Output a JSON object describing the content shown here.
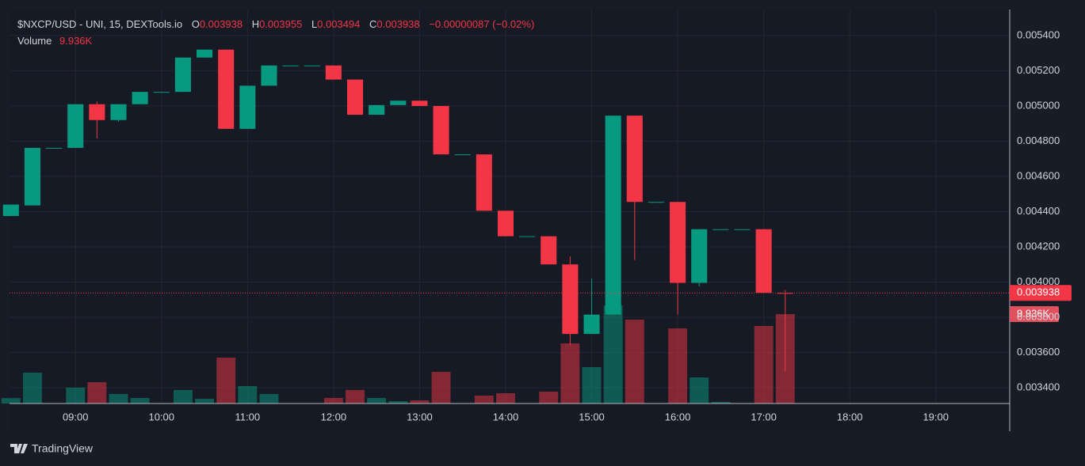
{
  "chart_data": {
    "type": "candlestick",
    "title": "$NXCP/USD - UNI, 15, DEXTools.io",
    "ohlc_letters": [
      "O",
      "H",
      "L",
      "C"
    ],
    "change": "−0.00000087 (−0.02%)",
    "up_color": "#089981",
    "down_color": "#f23645",
    "x": [
      "08:15",
      "08:30",
      "08:45",
      "09:00",
      "09:15",
      "09:30",
      "09:45",
      "10:00",
      "10:15",
      "10:30",
      "10:45",
      "11:00",
      "11:15",
      "11:30",
      "11:45",
      "12:00",
      "12:15",
      "12:30",
      "12:45",
      "13:00",
      "13:15",
      "13:30",
      "13:45",
      "14:00",
      "14:15",
      "14:30",
      "14:45",
      "15:00",
      "15:15",
      "15:30",
      "15:45",
      "16:00",
      "16:15",
      "16:30",
      "16:45",
      "17:00",
      "17:15"
    ],
    "open": [
      0.004375,
      0.004435,
      0.004762,
      0.004762,
      0.00501,
      0.00492,
      0.00501,
      0.00508,
      0.00508,
      0.005275,
      0.00532,
      0.00487,
      0.005115,
      0.00523,
      0.00523,
      0.00523,
      0.00515,
      0.00495,
      0.005005,
      0.00503,
      0.005,
      0.004725,
      0.004725,
      0.004405,
      0.00426,
      0.00426,
      0.0041,
      0.003705,
      0.003815,
      0.004945,
      0.004455,
      0.004455,
      0.003995,
      0.0043,
      0.0043,
      0.0043,
      0.003938
    ],
    "high": [
      0.00444,
      0.004762,
      0.004762,
      0.00501,
      0.005025,
      0.00501,
      0.00508,
      0.00508,
      0.005275,
      0.00532,
      0.00532,
      0.005115,
      0.00523,
      0.00523,
      0.00523,
      0.00523,
      0.00515,
      0.005005,
      0.00503,
      0.00503,
      0.005,
      0.004725,
      0.004725,
      0.004405,
      0.00426,
      0.00426,
      0.004145,
      0.00402,
      0.004945,
      0.004945,
      0.004455,
      0.004455,
      0.0043,
      0.0043,
      0.0043,
      0.0043,
      0.003955
    ],
    "low": [
      0.004375,
      0.004435,
      0.004762,
      0.004762,
      0.004815,
      0.00491,
      0.00501,
      0.00508,
      0.00508,
      0.005275,
      0.00487,
      0.00487,
      0.005115,
      0.00523,
      0.00523,
      0.00515,
      0.00495,
      0.00495,
      0.005005,
      0.005,
      0.004725,
      0.004725,
      0.004405,
      0.00426,
      0.00426,
      0.0041,
      0.00364,
      0.003705,
      0.003815,
      0.004125,
      0.004455,
      0.003815,
      0.003975,
      0.0043,
      0.0043,
      0.00393887,
      0.003494
    ],
    "close": [
      0.00444,
      0.004762,
      0.004762,
      0.00501,
      0.00492,
      0.00501,
      0.00508,
      0.00508,
      0.005275,
      0.00532,
      0.00487,
      0.005115,
      0.00523,
      0.00523,
      0.00523,
      0.00515,
      0.00495,
      0.005005,
      0.00503,
      0.005,
      0.004725,
      0.004725,
      0.004405,
      0.00426,
      0.00426,
      0.0041,
      0.003705,
      0.003815,
      0.004945,
      0.004455,
      0.004455,
      0.003995,
      0.0043,
      0.0043,
      0.0043,
      0.00393887,
      0.003938
    ],
    "volume": {
      "name": "Volume",
      "values": [
        600,
        3430,
        0,
        1760,
        2370,
        1060,
        620,
        0,
        1500,
        530,
        5100,
        1940,
        1060,
        0,
        0,
        620,
        1500,
        620,
        260,
        350,
        3520,
        0,
        880,
        1140,
        0,
        1320,
        6680,
        4050,
        10900,
        9320,
        0,
        8350,
        2900,
        180,
        0,
        8620,
        9936
      ],
      "last_label": "9.936K"
    },
    "volume_ylim": [
      0,
      43800
    ],
    "xlim": [
      "08:14",
      "19:51"
    ],
    "xticks": [
      "09:00",
      "10:00",
      "11:00",
      "12:00",
      "13:00",
      "14:00",
      "15:00",
      "16:00",
      "17:00",
      "18:00",
      "19:00"
    ],
    "ylim": [
      0.00331,
      0.005548
    ],
    "yticks": [
      {
        "value": 0.0034,
        "label": "0.003400"
      },
      {
        "value": 0.0036,
        "label": "0.003600"
      },
      {
        "value": 0.0038,
        "label": "0.003800"
      },
      {
        "value": 0.004,
        "label": "0.004000"
      },
      {
        "value": 0.0042,
        "label": "0.004200"
      },
      {
        "value": 0.0044,
        "label": "0.004400"
      },
      {
        "value": 0.0046,
        "label": "0.004600"
      },
      {
        "value": 0.0048,
        "label": "0.004800"
      },
      {
        "value": 0.005,
        "label": "0.005000"
      },
      {
        "value": 0.0052,
        "label": "0.005200"
      },
      {
        "value": 0.0054,
        "label": "0.005400"
      }
    ],
    "grid": true,
    "branding": "TradingView"
  }
}
